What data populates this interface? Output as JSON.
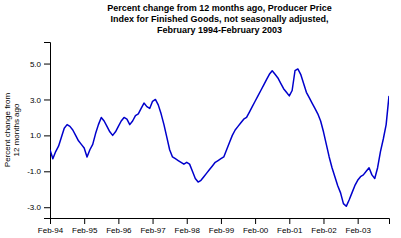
{
  "chart_data": {
    "type": "line",
    "title": "Percent change from 12 months ago, Producer Price\nIndex for Finished Goods, not seasonally adjusted,\nFebruary 1994-February 2003",
    "ylabel": "Percent change from\n12 months ago",
    "categories": [
      "Feb-94",
      null,
      null,
      null,
      null,
      null,
      null,
      null,
      null,
      null,
      null,
      null,
      "Feb-95",
      null,
      null,
      null,
      null,
      null,
      null,
      null,
      null,
      null,
      null,
      null,
      "Feb-96",
      null,
      null,
      null,
      null,
      null,
      null,
      null,
      null,
      null,
      null,
      null,
      "Feb-97",
      null,
      null,
      null,
      null,
      null,
      null,
      null,
      null,
      null,
      null,
      null,
      "Feb-98",
      null,
      null,
      null,
      null,
      null,
      null,
      null,
      null,
      null,
      null,
      null,
      "Feb-99",
      null,
      null,
      null,
      null,
      null,
      null,
      null,
      null,
      null,
      null,
      null,
      "Feb-00",
      null,
      null,
      null,
      null,
      null,
      null,
      null,
      null,
      null,
      null,
      null,
      "Feb-01",
      null,
      null,
      null,
      null,
      null,
      null,
      null,
      null,
      null,
      null,
      null,
      "Feb-02",
      null,
      null,
      null,
      null,
      null,
      null,
      null,
      null,
      null,
      null,
      null,
      "Feb-03",
      null,
      null,
      null,
      null,
      null,
      null,
      null,
      null,
      null,
      null,
      null
    ],
    "values": [
      0.2,
      -0.3,
      0.1,
      0.4,
      0.9,
      1.4,
      1.6,
      1.5,
      1.3,
      1.0,
      0.7,
      0.5,
      0.3,
      -0.2,
      0.2,
      0.5,
      1.1,
      1.6,
      2.0,
      1.8,
      1.5,
      1.2,
      1.0,
      1.2,
      1.5,
      1.8,
      2.0,
      1.9,
      1.6,
      1.8,
      2.1,
      2.2,
      2.5,
      2.8,
      2.6,
      2.5,
      2.9,
      3.0,
      2.7,
      2.2,
      1.6,
      0.9,
      0.2,
      -0.2,
      -0.3,
      -0.4,
      -0.5,
      -0.6,
      -0.5,
      -0.6,
      -1.0,
      -1.4,
      -1.6,
      -1.5,
      -1.3,
      -1.1,
      -0.9,
      -0.7,
      -0.5,
      -0.4,
      -0.3,
      -0.2,
      0.2,
      0.6,
      1.0,
      1.3,
      1.5,
      1.7,
      1.9,
      2.0,
      2.3,
      2.6,
      2.9,
      3.2,
      3.5,
      3.8,
      4.1,
      4.4,
      4.6,
      4.4,
      4.2,
      3.9,
      3.6,
      3.4,
      3.2,
      3.5,
      4.6,
      4.7,
      4.4,
      3.9,
      3.4,
      3.1,
      2.8,
      2.5,
      2.2,
      1.8,
      1.2,
      0.5,
      -0.2,
      -0.8,
      -1.3,
      -1.8,
      -2.2,
      -2.8,
      -2.95,
      -2.6,
      -2.2,
      -1.8,
      -1.5,
      -1.3,
      -1.2,
      -1.0,
      -0.8,
      -1.2,
      -1.4,
      -0.8,
      0.1,
      0.8,
      1.6,
      3.2
    ],
    "color": "#0000CC",
    "ylim": [
      -3.6,
      6.2
    ],
    "yticks": [
      {
        "value": -3.0,
        "label": "-3.0"
      },
      {
        "value": -1.0,
        "label": "-1.0"
      },
      {
        "value": 1.0,
        "label": "1.0"
      },
      {
        "value": 3.0,
        "label": "3.0"
      },
      {
        "value": 5.0,
        "label": "5.0"
      }
    ],
    "grid": false
  }
}
